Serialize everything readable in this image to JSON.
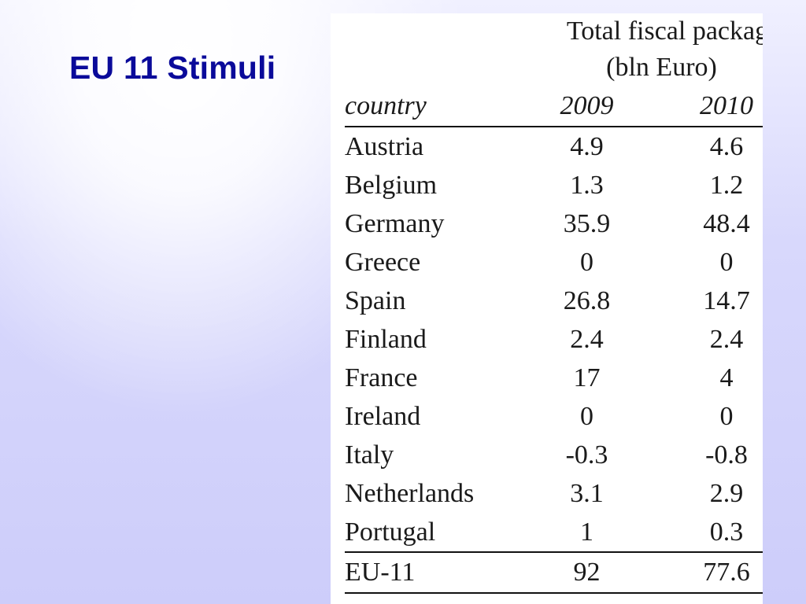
{
  "slide": {
    "title": "EU 11 Stimuli"
  },
  "table": {
    "header_line1": "Total fiscal package",
    "header_line2": "(bln Euro)",
    "columns": [
      "country",
      "2009",
      "2010"
    ],
    "rows": [
      {
        "country": "Austria",
        "y2009": "4.9",
        "y2010": "4.6"
      },
      {
        "country": "Belgium",
        "y2009": "1.3",
        "y2010": "1.2"
      },
      {
        "country": "Germany",
        "y2009": "35.9",
        "y2010": "48.4"
      },
      {
        "country": "Greece",
        "y2009": "0",
        "y2010": "0"
      },
      {
        "country": "Spain",
        "y2009": "26.8",
        "y2010": "14.7"
      },
      {
        "country": "Finland",
        "y2009": "2.4",
        "y2010": "2.4"
      },
      {
        "country": "France",
        "y2009": "17",
        "y2010": "4"
      },
      {
        "country": "Ireland",
        "y2009": "0",
        "y2010": "0"
      },
      {
        "country": "Italy",
        "y2009": "-0.3",
        "y2010": "-0.8"
      },
      {
        "country": "Netherlands",
        "y2009": "3.1",
        "y2010": "2.9"
      },
      {
        "country": "Portugal",
        "y2009": "1",
        "y2010": "0.3"
      }
    ],
    "total": {
      "country": "EU-11",
      "y2009": "92",
      "y2010": "77.6"
    }
  }
}
